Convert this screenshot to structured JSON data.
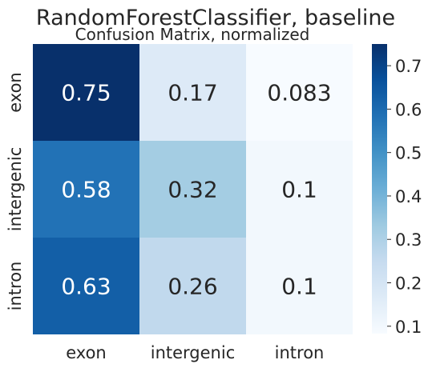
{
  "chart_data": {
    "type": "heatmap",
    "title": "RandomForestClassifier, baseline",
    "subtitle": "Confusion Matrix, normalized",
    "row_labels": [
      "exon",
      "intergenic",
      "intron"
    ],
    "col_labels": [
      "exon",
      "intergenic",
      "intron"
    ],
    "values": [
      [
        0.75,
        0.17,
        0.083
      ],
      [
        0.58,
        0.32,
        0.1
      ],
      [
        0.63,
        0.26,
        0.1
      ]
    ],
    "cell_labels": [
      [
        "0.75",
        "0.17",
        "0.083"
      ],
      [
        "0.58",
        "0.32",
        "0.1"
      ],
      [
        "0.63",
        "0.26",
        "0.1"
      ]
    ],
    "colormap": "Blues",
    "colorbar": {
      "range": [
        0.083,
        0.75
      ],
      "ticks": [
        "0.1",
        "0.2",
        "0.3",
        "0.4",
        "0.5",
        "0.6",
        "0.7"
      ],
      "tick_values": [
        0.1,
        0.2,
        0.3,
        0.4,
        0.5,
        0.6,
        0.7
      ]
    }
  }
}
